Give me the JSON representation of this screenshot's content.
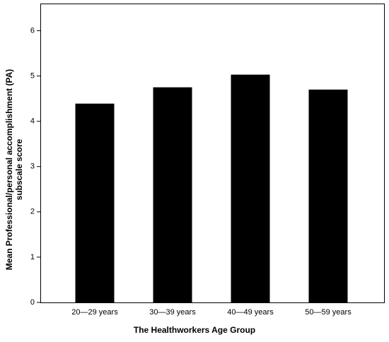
{
  "chart_data": {
    "type": "bar",
    "ylabel": [
      "Mean Professional/personal accomplishment (PA)",
      "subscale score"
    ],
    "xlabel": "The Healthworkers Age Group",
    "categories": [
      "20—29 years",
      "30—39 years",
      "40—49 years",
      "50—59 years"
    ],
    "values": [
      4.39,
      4.75,
      5.03,
      4.7
    ],
    "color": "#000000",
    "ylim": [
      0,
      6.6
    ],
    "yticks": [
      0,
      1,
      2,
      3,
      4,
      5,
      6
    ],
    "grid": false
  }
}
